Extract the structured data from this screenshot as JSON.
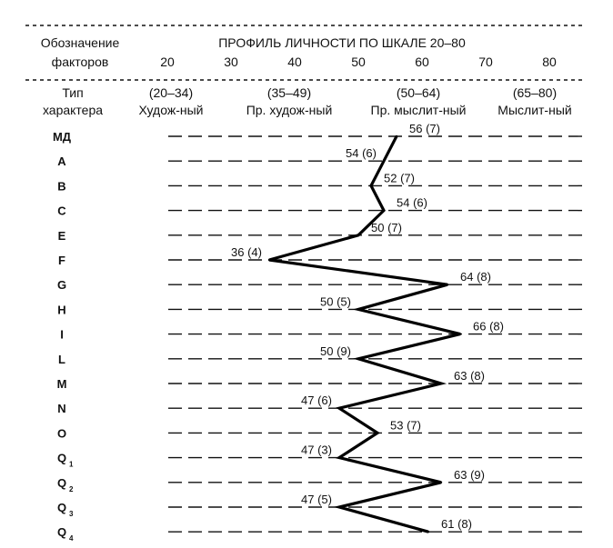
{
  "chart_data": {
    "type": "line",
    "header": {
      "factors_label_1": "Обозначение",
      "factors_label_2": "факторов",
      "title": "ПРОФИЛЬ ЛИЧНОСТИ ПО ШКАЛЕ 20–80",
      "ticks": [
        "20",
        "30",
        "40",
        "50",
        "60",
        "70",
        "80"
      ],
      "type_label_1": "Тип",
      "type_label_2": "характера",
      "ranges": [
        {
          "range": "(20–34)",
          "name": "Худож-ный"
        },
        {
          "range": "(35–49)",
          "name": "Пр. худож-ный"
        },
        {
          "range": "(50–64)",
          "name": "Пр. мыслит-ный"
        },
        {
          "range": "(65–80)",
          "name": "Мыслит-ный"
        }
      ]
    },
    "xlim": [
      20,
      80
    ],
    "categories": [
      {
        "main": "МД",
        "sub": ""
      },
      {
        "main": "A",
        "sub": ""
      },
      {
        "main": "B",
        "sub": ""
      },
      {
        "main": "C",
        "sub": ""
      },
      {
        "main": "E",
        "sub": ""
      },
      {
        "main": "F",
        "sub": ""
      },
      {
        "main": "G",
        "sub": ""
      },
      {
        "main": "H",
        "sub": ""
      },
      {
        "main": "I",
        "sub": ""
      },
      {
        "main": "L",
        "sub": ""
      },
      {
        "main": "M",
        "sub": ""
      },
      {
        "main": "N",
        "sub": ""
      },
      {
        "main": "O",
        "sub": ""
      },
      {
        "main": "Q",
        "sub": "1"
      },
      {
        "main": "Q",
        "sub": "2"
      },
      {
        "main": "Q",
        "sub": "3"
      },
      {
        "main": "Q",
        "sub": "4"
      }
    ],
    "values": [
      56,
      54,
      52,
      54,
      50,
      36,
      64,
      50,
      66,
      50,
      63,
      47,
      53,
      47,
      63,
      47,
      61
    ],
    "data_labels": [
      "56 (7)",
      "54 (6)",
      "52 (7)",
      "54 (6)",
      "50 (7)",
      "36 (4)",
      "64 (8)",
      "50 (5)",
      "66 (8)",
      "50 (9)",
      "63 (8)",
      "47 (6)",
      "53 (7)",
      "47 (3)",
      "63 (9)",
      "47 (5)",
      "61 (8)"
    ],
    "label_sides": [
      "right",
      "left",
      "right",
      "right",
      "right",
      "left",
      "right",
      "left",
      "right",
      "left",
      "right",
      "left",
      "right",
      "left",
      "right",
      "left",
      "right"
    ]
  }
}
